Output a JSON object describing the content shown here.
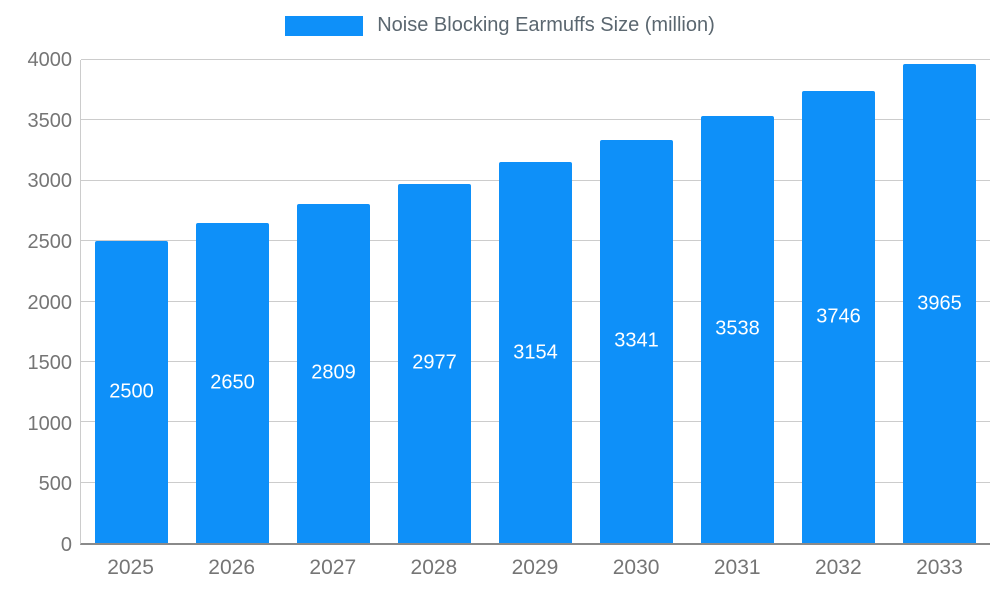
{
  "legend": {
    "label": "Noise Blocking Earmuffs Size (million)"
  },
  "colors": {
    "bar": "#0e90f9",
    "grid": "#cccccc",
    "axis": "#8a8a8a",
    "tick_text": "#757575",
    "title_text": "#5b6770",
    "value_text": "#ffffff",
    "background": "#ffffff"
  },
  "chart_data": {
    "type": "bar",
    "title": "Noise Blocking Earmuffs Size (million)",
    "categories": [
      "2025",
      "2026",
      "2027",
      "2028",
      "2029",
      "2030",
      "2031",
      "2032",
      "2033"
    ],
    "values": [
      2500,
      2650,
      2809,
      2977,
      3154,
      3341,
      3538,
      3746,
      3965
    ],
    "value_labels_shown": true,
    "value_label_position": "inside-center",
    "xlabel": "",
    "ylabel": "",
    "ylim": [
      0,
      4000
    ],
    "yticks": [
      0,
      500,
      1000,
      1500,
      2000,
      2500,
      3000,
      3500,
      4000
    ],
    "grid": true,
    "legend_position": "top-center"
  }
}
